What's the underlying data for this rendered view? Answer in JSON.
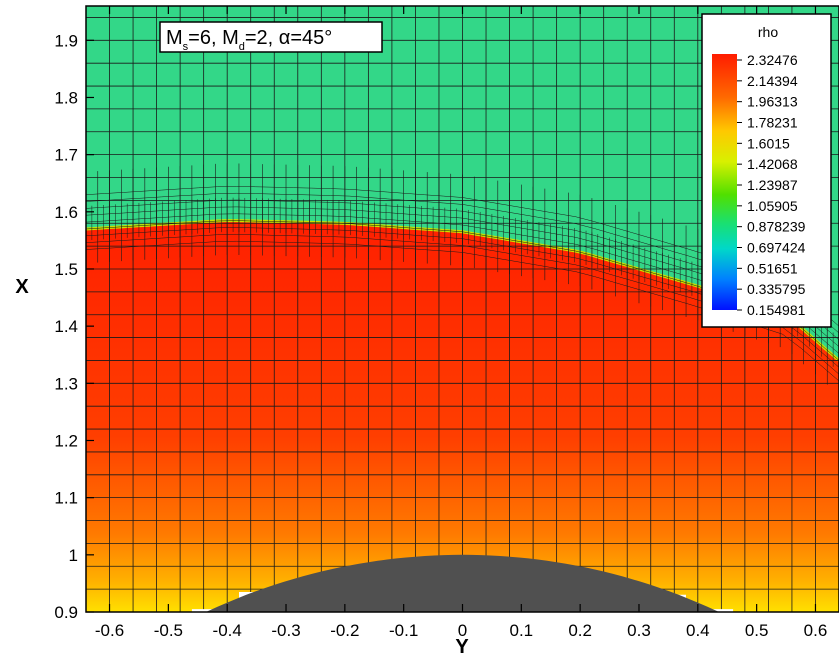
{
  "chart_data": {
    "type": "heatmap",
    "xlabel": "Y",
    "ylabel": "X",
    "xlim": [
      -0.64,
      0.64
    ],
    "ylim": [
      0.9,
      1.96
    ],
    "x_ticks": [
      -0.6,
      -0.5,
      -0.4,
      -0.3,
      -0.2,
      -0.1,
      0,
      0.1,
      0.2,
      0.3,
      0.4,
      0.5,
      0.6
    ],
    "x_tick_labels": [
      "-0.6",
      "-0.5",
      "-0.4",
      "-0.3",
      "-0.2",
      "-0.1",
      "0",
      "0.1",
      "0.2",
      "0.3",
      "0.4",
      "0.5",
      "0.6"
    ],
    "y_ticks": [
      0.9,
      1.0,
      1.1,
      1.2,
      1.3,
      1.4,
      1.5,
      1.6,
      1.7,
      1.8,
      1.9
    ],
    "y_tick_labels": [
      "0.9",
      "1",
      "1.1",
      "1.2",
      "1.3",
      "1.4",
      "1.5",
      "1.6",
      "1.7",
      "1.8",
      "1.9"
    ],
    "annotation": {
      "parts": [
        {
          "text": "M",
          "sub": "s"
        },
        {
          "text": "=6, M",
          "sub": "d"
        },
        {
          "text": "=2, α=45°",
          "sub": ""
        }
      ]
    },
    "legend": {
      "title": "rho",
      "placement": "top-right",
      "values": [
        "2.32476",
        "2.14394",
        "1.96313",
        "1.78231",
        "1.6015",
        "1.42068",
        "1.23987",
        "1.05905",
        "0.878239",
        "0.697424",
        "0.51651",
        "0.335795",
        "0.154981"
      ],
      "colors": [
        "#ff1c00",
        "#ff5a00",
        "#ff9600",
        "#ffd200",
        "#e6f000",
        "#a6f000",
        "#4fe000",
        "#19e060",
        "#00e0a0",
        "#00d0e0",
        "#0090ff",
        "#0050ff",
        "#0010ff"
      ]
    },
    "colors": {
      "freestream": "#33d788",
      "shock_layer": "#ff2f00",
      "body": "#505050",
      "grid_line": "#1a1a1a"
    },
    "body": {
      "shape": "cylinder",
      "center_y": 0.0,
      "radius": 1.0
    },
    "shock_x": [
      [
        -0.64,
        1.57
      ],
      [
        -0.4,
        1.585
      ],
      [
        -0.2,
        1.58
      ],
      [
        0.0,
        1.565
      ],
      [
        0.2,
        1.53
      ],
      [
        0.4,
        1.47
      ],
      [
        0.55,
        1.42
      ],
      [
        0.64,
        1.34
      ]
    ]
  }
}
